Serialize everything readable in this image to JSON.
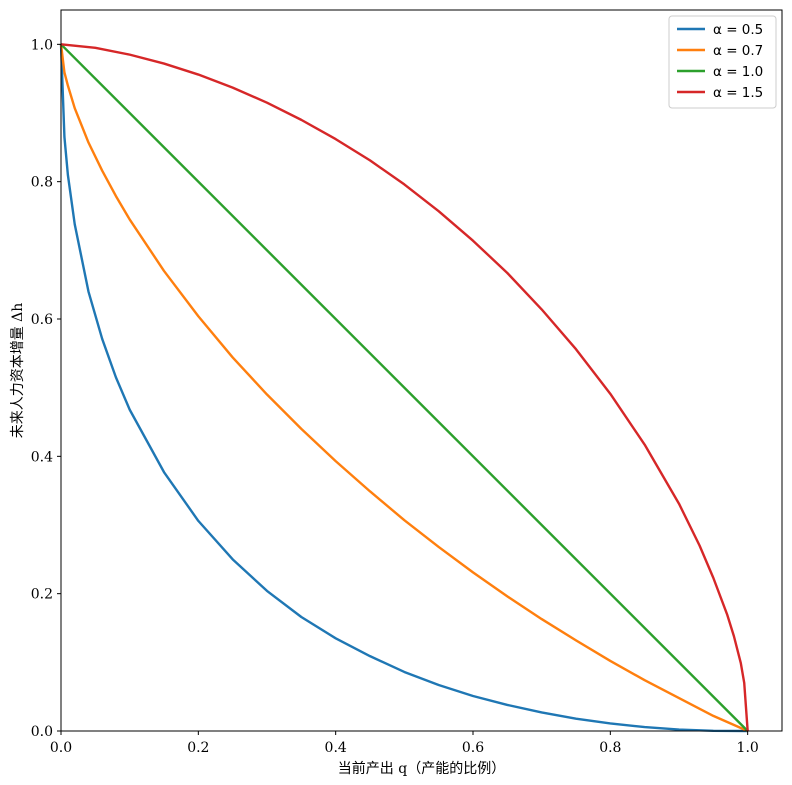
{
  "chart_data": {
    "type": "line",
    "xlabel": "当前产出 q（产能的比例）",
    "ylabel": "未来人力资本增量 Δh",
    "xlim": [
      0.0,
      1.05
    ],
    "ylim": [
      0.0,
      1.05
    ],
    "xticks": [
      "0.0",
      "0.2",
      "0.4",
      "0.6",
      "0.8",
      "1.0"
    ],
    "yticks": [
      "0.0",
      "0.2",
      "0.4",
      "0.6",
      "0.8",
      "1.0"
    ],
    "grid": false,
    "legend_position": "top-right",
    "series": [
      {
        "name": "α = 0.5",
        "color": "#1f77b4",
        "x": [
          0.0,
          0.005,
          0.01,
          0.02,
          0.04,
          0.06,
          0.08,
          0.1,
          0.15,
          0.2,
          0.25,
          0.3,
          0.35,
          0.4,
          0.45,
          0.5,
          0.55,
          0.6,
          0.65,
          0.7,
          0.75,
          0.8,
          0.85,
          0.9,
          0.95,
          1.0
        ],
        "y": [
          1.0,
          0.865,
          0.81,
          0.738,
          0.64,
          0.571,
          0.515,
          0.468,
          0.377,
          0.306,
          0.25,
          0.204,
          0.166,
          0.135,
          0.109,
          0.086,
          0.067,
          0.051,
          0.038,
          0.027,
          0.018,
          0.011,
          0.0057,
          0.0021,
          0.0003,
          0.0
        ]
      },
      {
        "name": "α = 0.7",
        "color": "#ff7f0e",
        "x": [
          0.0,
          0.005,
          0.01,
          0.02,
          0.04,
          0.06,
          0.08,
          0.1,
          0.15,
          0.2,
          0.25,
          0.3,
          0.35,
          0.4,
          0.45,
          0.5,
          0.55,
          0.6,
          0.65,
          0.7,
          0.75,
          0.8,
          0.85,
          0.9,
          0.95,
          1.0
        ],
        "y": [
          1.0,
          0.959,
          0.94,
          0.907,
          0.857,
          0.816,
          0.779,
          0.745,
          0.67,
          0.604,
          0.544,
          0.49,
          0.44,
          0.393,
          0.349,
          0.307,
          0.268,
          0.231,
          0.196,
          0.163,
          0.132,
          0.102,
          0.074,
          0.048,
          0.022,
          0.0
        ]
      },
      {
        "name": "α = 1.0",
        "color": "#2ca02c",
        "x": [
          0.0,
          1.0
        ],
        "y": [
          1.0,
          0.0
        ]
      },
      {
        "name": "α = 1.5",
        "color": "#d62728",
        "x": [
          0.0,
          0.05,
          0.1,
          0.15,
          0.2,
          0.25,
          0.3,
          0.35,
          0.4,
          0.45,
          0.5,
          0.55,
          0.6,
          0.65,
          0.7,
          0.75,
          0.8,
          0.85,
          0.9,
          0.93,
          0.95,
          0.97,
          0.98,
          0.99,
          0.995,
          1.0
        ],
        "y": [
          1.0,
          0.995,
          0.985,
          0.972,
          0.956,
          0.937,
          0.915,
          0.89,
          0.862,
          0.831,
          0.796,
          0.757,
          0.714,
          0.667,
          0.614,
          0.556,
          0.491,
          0.417,
          0.331,
          0.27,
          0.223,
          0.17,
          0.138,
          0.099,
          0.07,
          0.0
        ]
      }
    ]
  }
}
